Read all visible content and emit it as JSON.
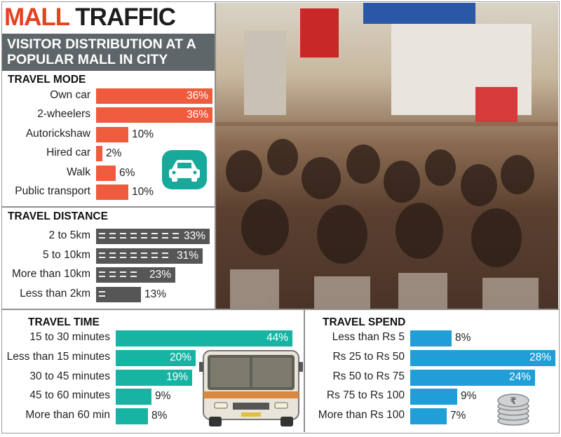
{
  "header": {
    "title_part1": "MALL",
    "title_part2": "TRAFFIC",
    "subtitle_line1": "VISITOR DISTRIBUTION AT A",
    "subtitle_line2": "POPULAR MALL IN CITY"
  },
  "colors": {
    "title_accent": "#e8411f",
    "subtitle_bg": "#5f6669",
    "travel_mode": "#ef5b3d",
    "travel_distance": "#565656",
    "travel_time": "#17b3a3",
    "travel_spend": "#1f9ed8"
  },
  "icons": {
    "travel_mode": "car-icon",
    "travel_time": "bus-icon",
    "travel_spend": "rupee-coins-icon"
  },
  "chart_data": [
    {
      "type": "bar",
      "orientation": "horizontal",
      "title": "TRAVEL MODE",
      "unit": "%",
      "categories": [
        "Own car",
        "2-wheelers",
        "Autorickshaw",
        "Hired car",
        "Walk",
        "Public transport"
      ],
      "values": [
        36,
        36,
        10,
        2,
        6,
        10
      ],
      "labels": [
        "36%",
        "36%",
        "10%",
        "2%",
        "6%",
        "10%"
      ]
    },
    {
      "type": "bar",
      "orientation": "horizontal",
      "title": "TRAVEL DISTANCE",
      "unit": "%",
      "categories": [
        "2 to 5km",
        "5 to 10km",
        "More than 10km",
        "Less than 2km"
      ],
      "values": [
        33,
        31,
        23,
        13
      ],
      "labels": [
        "33%",
        "31%",
        "23%",
        "13%"
      ]
    },
    {
      "type": "bar",
      "orientation": "horizontal",
      "title": "TRAVEL TIME",
      "unit": "%",
      "categories": [
        "15 to 30 minutes",
        "Less than 15 minutes",
        "30 to 45 minutes",
        "45 to 60 minutes",
        "More than 60 min"
      ],
      "values": [
        44,
        20,
        19,
        9,
        8
      ],
      "labels": [
        "44%",
        "20%",
        "19%",
        "9%",
        "8%"
      ]
    },
    {
      "type": "bar",
      "orientation": "horizontal",
      "title": "TRAVEL SPEND",
      "unit": "%",
      "categories": [
        "Less than Rs 5",
        "Rs 25 to Rs 50",
        "Rs 50 to Rs 75",
        "Rs 75 to Rs 100",
        "More than Rs 100"
      ],
      "values": [
        8,
        28,
        24,
        9,
        7
      ],
      "labels": [
        "8%",
        "28%",
        "24%",
        "9%",
        "7%"
      ]
    }
  ]
}
